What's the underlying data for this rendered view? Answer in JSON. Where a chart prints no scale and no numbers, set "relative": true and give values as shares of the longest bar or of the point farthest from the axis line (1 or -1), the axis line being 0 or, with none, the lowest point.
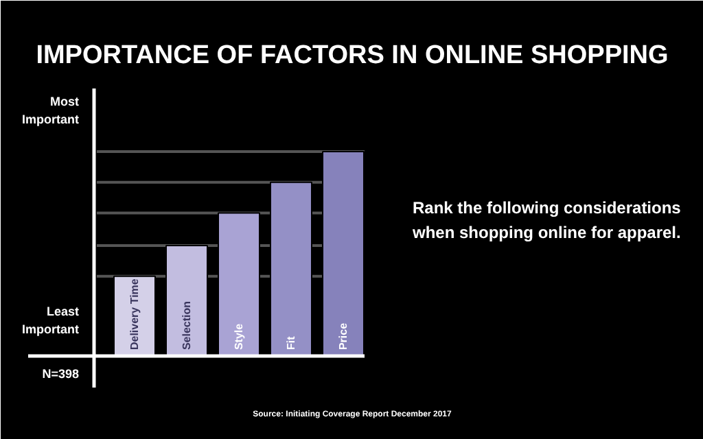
{
  "chart_data": {
    "type": "bar",
    "title": "IMPORTANCE OF FACTORS IN ONLINE SHOPPING",
    "relative": true,
    "categories": [
      "Delivery Time",
      "Selection",
      "Style",
      "Fit",
      "Price"
    ],
    "values": [
      0.39,
      0.54,
      0.7,
      0.85,
      1
    ],
    "colors": [
      "#d4d0e8",
      "#c2bde0",
      "#a9a3d4",
      "#9490c6",
      "#8682bb"
    ],
    "ref_lines": [
      {
        "axis": "y",
        "value": 0.39,
        "color": "#555555"
      },
      {
        "axis": "y",
        "value": 0.54,
        "color": "#555555"
      },
      {
        "axis": "y",
        "value": 0.7,
        "color": "#555555"
      },
      {
        "axis": "y",
        "value": 0.85,
        "color": "#555555"
      },
      {
        "axis": "y",
        "value": 1,
        "color": "#555555"
      }
    ],
    "annotations": [
      "Most Important",
      "Least Important",
      "N=398",
      "Rank the following considerations when shopping online for apparel.",
      "Source: Initiating Coverage Report December 2017"
    ],
    "grid": false
  }
}
